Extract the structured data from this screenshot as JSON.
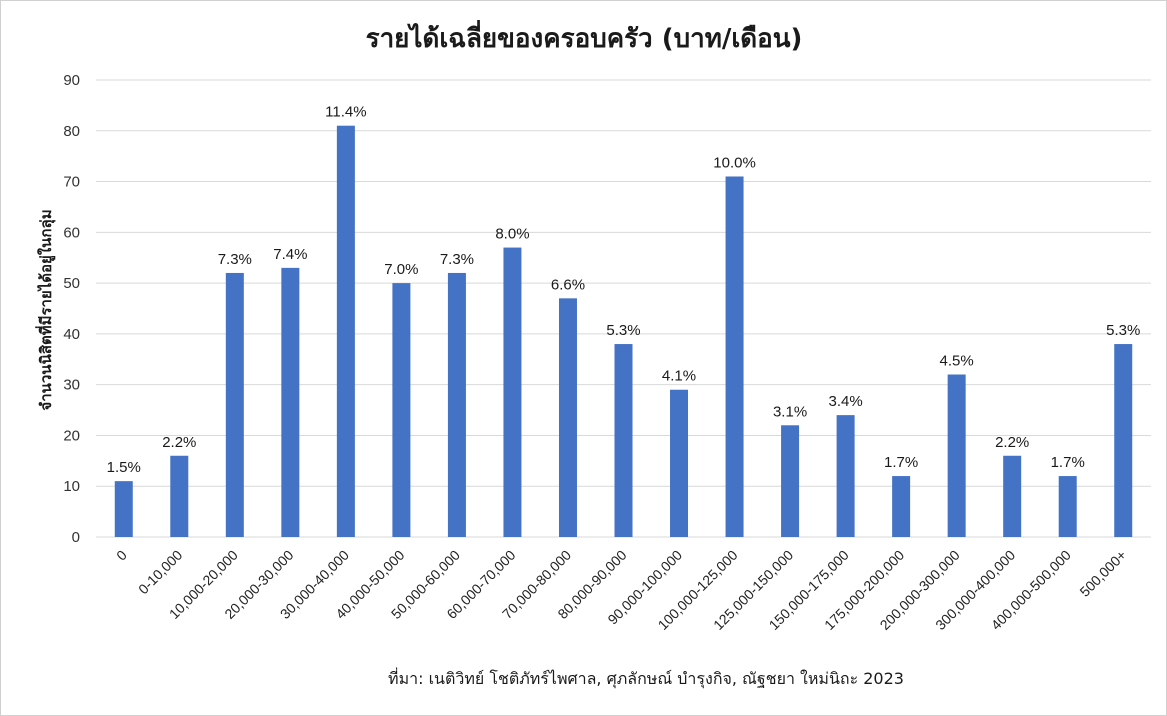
{
  "chart_data": {
    "type": "bar",
    "title": "รายได้เฉลี่ยของครอบครัว (บาท/เดือน)",
    "xlabel": "",
    "ylabel": "จำนวนนิสิตที่มีรายได้อยู่ในกลุ่ม",
    "ylim": [
      0,
      90
    ],
    "yticks": [
      0,
      10,
      20,
      30,
      40,
      50,
      60,
      70,
      80,
      90
    ],
    "grid": true,
    "legend": "none",
    "bar_color": "#4472C4",
    "categories": [
      "0",
      "0-10,000",
      "10,000-20,000",
      "20,000-30,000",
      "30,000-40,000",
      "40,000-50,000",
      "50,000-60,000",
      "60,000-70,000",
      "70,000-80,000",
      "80,000-90,000",
      "90,000-100,000",
      "100,000-125,000",
      "125,000-150,000",
      "150,000-175,000",
      "175,000-200,000",
      "200,000-300,000",
      "300,000-400,000",
      "400,000-500,000",
      "500,000+"
    ],
    "values": [
      11,
      16,
      52,
      53,
      81,
      50,
      52,
      57,
      47,
      38,
      29,
      71,
      22,
      24,
      12,
      32,
      16,
      12,
      38
    ],
    "data_labels": [
      "1.5%",
      "2.2%",
      "7.3%",
      "7.4%",
      "11.4%",
      "7.0%",
      "7.3%",
      "8.0%",
      "6.6%",
      "5.3%",
      "4.1%",
      "10.0%",
      "3.1%",
      "3.4%",
      "1.7%",
      "4.5%",
      "2.2%",
      "1.7%",
      "5.3%"
    ],
    "source": "ที่มา: เนติวิทย์ โชติภัทร์ไพศาล, ศุภลักษณ์ บำรุงกิจ, ณัฐชยา ใหม่นิถะ 2023"
  }
}
